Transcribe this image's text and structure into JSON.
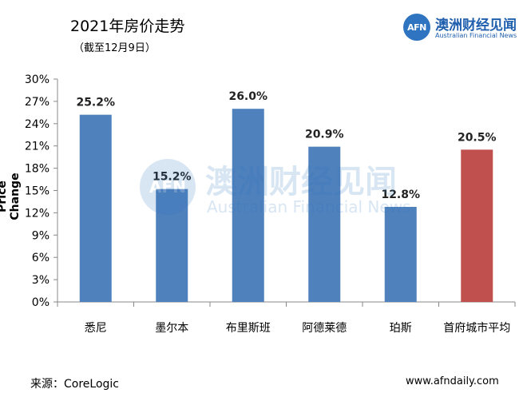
{
  "header": {
    "title": "2021年房价走势",
    "subtitle": "（截至12月9日）"
  },
  "logo": {
    "mark": "AFN",
    "name_cn": "澳洲财经见闻",
    "name_en": "Australian Financial News"
  },
  "watermark": {
    "mark": "AFN",
    "name_cn": "澳洲财经见闻",
    "name_en": "Australian Financial News"
  },
  "footer": {
    "source": "来源：CoreLogic",
    "website": "www.afndaily.com"
  },
  "chart_data": {
    "type": "bar",
    "title": "2021年房价走势",
    "subtitle": "（截至12月9日）",
    "xlabel": "",
    "ylabel": "Price Change",
    "categories": [
      "悉尼",
      "墨尔本",
      "布里斯班",
      "阿德莱德",
      "珀斯",
      "首府城市平均"
    ],
    "values": [
      25.2,
      15.2,
      26.0,
      20.9,
      12.8,
      20.5
    ],
    "value_labels": [
      "25.2%",
      "15.2%",
      "26.0%",
      "20.9%",
      "12.8%",
      "20.5%"
    ],
    "bar_colors": [
      "#4f81bd",
      "#4f81bd",
      "#4f81bd",
      "#4f81bd",
      "#4f81bd",
      "#c0504d"
    ],
    "ylim": [
      0,
      30
    ],
    "y_ticks": [
      0,
      3,
      6,
      9,
      12,
      15,
      18,
      21,
      24,
      27,
      30
    ],
    "y_tick_labels": [
      "0%",
      "3%",
      "6%",
      "9%",
      "12%",
      "15%",
      "18%",
      "21%",
      "24%",
      "27%",
      "30%"
    ],
    "grid": false,
    "legend": "none"
  }
}
